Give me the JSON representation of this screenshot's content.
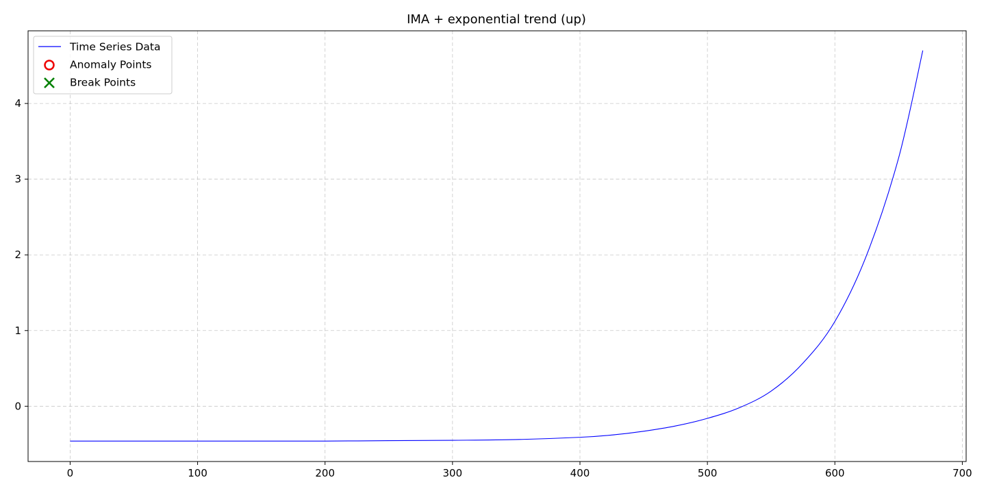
{
  "chart_data": {
    "type": "line",
    "title": "IMA + exponential trend (up)",
    "xlabel": "",
    "ylabel": "",
    "xlim": [
      -33,
      703
    ],
    "ylim": [
      -0.73,
      4.96
    ],
    "x_ticks": [
      0,
      100,
      200,
      300,
      400,
      500,
      600,
      700
    ],
    "y_ticks": [
      0,
      1,
      2,
      3,
      4
    ],
    "grid": true,
    "legend_position": "top-left",
    "legend": [
      {
        "label": "Time Series Data",
        "marker": "line",
        "color": "#0000ff"
      },
      {
        "label": "Anomaly Points",
        "marker": "circle",
        "color": "#ee0000"
      },
      {
        "label": "Break Points",
        "marker": "x",
        "color": "#008000"
      }
    ],
    "series": [
      {
        "name": "Time Series Data",
        "color": "#0000ff",
        "x": [
          0,
          50,
          100,
          150,
          200,
          250,
          300,
          350,
          400,
          425,
          450,
          475,
          500,
          525,
          550,
          575,
          600,
          625,
          650,
          669
        ],
        "y": [
          -0.46,
          -0.46,
          -0.46,
          -0.46,
          -0.46,
          -0.455,
          -0.45,
          -0.44,
          -0.41,
          -0.38,
          -0.33,
          -0.26,
          -0.16,
          -0.02,
          0.2,
          0.57,
          1.12,
          2.0,
          3.28,
          4.7
        ]
      }
    ],
    "anomaly_points": [],
    "break_points": []
  }
}
